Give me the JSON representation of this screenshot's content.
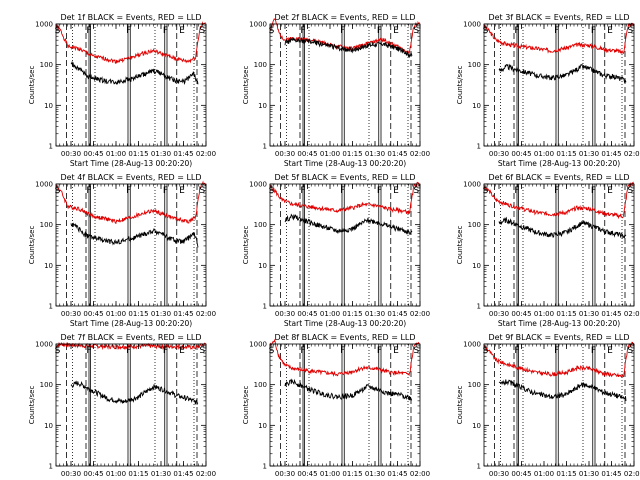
{
  "figure": {
    "panels": [
      {
        "title": "Det 1f BLACK = Events, RED = LLD",
        "y_label": "Counts/sec",
        "x_label": "Start Time (28-Aug-13 00:20:20)"
      },
      {
        "title": "Det 2f BLACK = Events, RED = LLD",
        "y_label": "Counts/sec",
        "x_label": "Start Time (28-Aug-13 00:20:20)"
      },
      {
        "title": "Det 3f BLACK = Events, RED = LLD",
        "y_label": "Counts/sec",
        "x_label": "Start Time (28-Aug-13 00:20:20)"
      },
      {
        "title": "Det 4f BLACK = Events, RED = LLD",
        "y_label": "Counts/sec",
        "x_label": "Start Time (28-Aug-13 00:20:20)"
      },
      {
        "title": "Det 5f BLACK = Events, RED = LLD",
        "y_label": "Counts/sec",
        "x_label": "Start Time (28-Aug-13 00:20:20)"
      },
      {
        "title": "Det 6f BLACK = Events, RED = LLD",
        "y_label": "Counts/sec",
        "x_label": "Start Time (28-Aug-13 00:20:20)"
      },
      {
        "title": "Det 7f BLACK = Events, RED = LLD",
        "y_label": "Counts/sec",
        "x_label": "Start Time (28-Aug-13 00:20:20)"
      },
      {
        "title": "Det 8f BLACK = Events, RED = LLD",
        "y_label": "Counts/sec",
        "x_label": "Start Time (28-Aug-13 00:20:20)"
      },
      {
        "title": "Det 9f BLACK = Events, RED = LLD",
        "y_label": "Counts/sec",
        "x_label": "Start Time (28-Aug-13 00:20:20)"
      }
    ]
  },
  "colors": {
    "events": "#000000",
    "lld": "#e00000",
    "axes": "#000000"
  },
  "chart_data": {
    "type": "line",
    "x_range_minutes": [
      0,
      100
    ],
    "y_range": [
      1,
      1000
    ],
    "y_scale": "log",
    "x_tick_labels": [
      "00:30",
      "00:45",
      "01:00",
      "01:15",
      "01:30",
      "01:45",
      "02:00"
    ],
    "x_tick_minutes": [
      10,
      25,
      40,
      55,
      70,
      85,
      100
    ],
    "y_tick_labels": [
      "1",
      "10",
      "100",
      "1000"
    ],
    "y_tick_values": [
      1,
      10,
      100,
      1000
    ],
    "series_labels": {
      "events": "BLACK = Events",
      "lld": "RED = LLD"
    },
    "markers": {
      "S": [
        1,
        97.5
      ],
      "F": [
        22,
        48.5,
        73
      ],
      "E": [
        84
      ]
    },
    "dashed_line_minutes": [
      7,
      20,
      80.5,
      94
    ],
    "dotted_line_minutes": [
      11,
      26,
      66,
      92
    ],
    "solid_line_minutes": [
      22,
      23,
      48,
      49.5,
      72.5,
      74
    ],
    "panels": [
      {
        "detector": "1f",
        "lld": {
          "minutes": [
            0,
            3,
            8,
            15,
            25,
            33,
            40,
            50,
            60,
            65,
            75,
            80,
            88,
            93,
            96,
            98,
            100
          ],
          "values": [
            900,
            700,
            280,
            250,
            160,
            140,
            120,
            150,
            200,
            220,
            160,
            140,
            120,
            150,
            800,
            1000,
            1000
          ]
        },
        "events": {
          "minutes": [
            10,
            15,
            20,
            25,
            33,
            40,
            50,
            60,
            65,
            70,
            75,
            80,
            85,
            92,
            95
          ],
          "values": [
            110,
            80,
            55,
            48,
            40,
            37,
            45,
            60,
            70,
            62,
            48,
            40,
            38,
            60,
            30
          ]
        }
      },
      {
        "detector": "2f",
        "lld": {
          "minutes": [
            0,
            3,
            6,
            10,
            15,
            25,
            35,
            45,
            55,
            65,
            75,
            85,
            93,
            96,
            98,
            100
          ],
          "values": [
            700,
            1400,
            600,
            400,
            450,
            420,
            350,
            280,
            250,
            330,
            420,
            280,
            200,
            900,
            1000,
            1000
          ]
        },
        "events": {
          "minutes": [
            10,
            15,
            25,
            35,
            45,
            55,
            65,
            75,
            85,
            93,
            95
          ],
          "values": [
            350,
            400,
            380,
            320,
            260,
            230,
            300,
            330,
            250,
            180,
            170
          ]
        }
      },
      {
        "detector": "3f",
        "lld": {
          "minutes": [
            0,
            3,
            8,
            15,
            25,
            35,
            45,
            55,
            62,
            70,
            80,
            88,
            93,
            96,
            98,
            100
          ],
          "values": [
            900,
            700,
            400,
            320,
            280,
            250,
            220,
            260,
            310,
            300,
            240,
            220,
            200,
            900,
            1000,
            1000
          ]
        },
        "events": {
          "minutes": [
            10,
            15,
            25,
            35,
            45,
            55,
            65,
            70,
            80,
            88,
            95
          ],
          "values": [
            70,
            90,
            70,
            55,
            48,
            55,
            90,
            80,
            55,
            50,
            40
          ]
        }
      },
      {
        "detector": "4f",
        "lld": {
          "minutes": [
            0,
            3,
            8,
            15,
            25,
            33,
            40,
            50,
            60,
            65,
            75,
            80,
            88,
            93,
            96,
            98,
            100
          ],
          "values": [
            900,
            700,
            280,
            250,
            160,
            140,
            120,
            150,
            200,
            220,
            160,
            140,
            120,
            150,
            800,
            1000,
            1000
          ]
        },
        "events": {
          "minutes": [
            10,
            15,
            20,
            25,
            33,
            40,
            50,
            60,
            65,
            70,
            75,
            80,
            85,
            92,
            95
          ],
          "values": [
            110,
            80,
            55,
            48,
            40,
            37,
            45,
            60,
            70,
            62,
            48,
            40,
            38,
            60,
            30
          ]
        }
      },
      {
        "detector": "5f",
        "lld": {
          "minutes": [
            0,
            3,
            8,
            15,
            25,
            35,
            45,
            55,
            62,
            70,
            80,
            88,
            93,
            96,
            98,
            100
          ],
          "values": [
            900,
            700,
            400,
            320,
            280,
            250,
            220,
            260,
            310,
            300,
            240,
            220,
            200,
            900,
            1000,
            1000
          ]
        },
        "events": {
          "minutes": [
            10,
            15,
            25,
            35,
            45,
            55,
            65,
            70,
            80,
            88,
            95
          ],
          "values": [
            130,
            160,
            120,
            90,
            70,
            80,
            130,
            120,
            90,
            75,
            60
          ]
        }
      },
      {
        "detector": "6f",
        "lld": {
          "minutes": [
            0,
            3,
            8,
            15,
            25,
            35,
            45,
            55,
            62,
            70,
            80,
            88,
            93,
            96,
            98,
            100
          ],
          "values": [
            900,
            700,
            400,
            320,
            250,
            200,
            180,
            200,
            260,
            250,
            190,
            170,
            160,
            900,
            1000,
            1000
          ]
        },
        "events": {
          "minutes": [
            10,
            15,
            25,
            35,
            45,
            55,
            65,
            70,
            80,
            88,
            95
          ],
          "values": [
            110,
            130,
            90,
            65,
            55,
            65,
            110,
            100,
            70,
            60,
            50
          ]
        }
      },
      {
        "detector": "7f",
        "lld": {
          "minutes": [
            0,
            3,
            10,
            20,
            30,
            40,
            50,
            60,
            70,
            80,
            88,
            93,
            96,
            100
          ],
          "values": [
            900,
            1000,
            950,
            900,
            880,
            850,
            870,
            900,
            880,
            860,
            840,
            820,
            900,
            1000
          ]
        },
        "events": {
          "minutes": [
            10,
            15,
            25,
            35,
            45,
            55,
            65,
            70,
            80,
            88,
            95
          ],
          "values": [
            95,
            110,
            70,
            45,
            38,
            50,
            90,
            80,
            55,
            45,
            35
          ]
        }
      },
      {
        "detector": "8f",
        "lld": {
          "minutes": [
            0,
            3,
            6,
            10,
            15,
            25,
            35,
            45,
            55,
            62,
            70,
            80,
            88,
            93,
            96,
            98,
            100
          ],
          "values": [
            900,
            1200,
            500,
            300,
            250,
            220,
            200,
            180,
            210,
            260,
            250,
            200,
            190,
            180,
            900,
            1000,
            1000
          ]
        },
        "events": {
          "minutes": [
            10,
            15,
            25,
            35,
            45,
            55,
            65,
            70,
            80,
            88,
            95
          ],
          "values": [
            100,
            120,
            80,
            60,
            50,
            55,
            90,
            80,
            60,
            55,
            45
          ]
        }
      },
      {
        "detector": "9f",
        "lld": {
          "minutes": [
            0,
            3,
            8,
            15,
            25,
            35,
            45,
            55,
            62,
            70,
            80,
            88,
            93,
            96,
            98,
            100
          ],
          "values": [
            900,
            700,
            400,
            320,
            250,
            200,
            180,
            200,
            260,
            250,
            190,
            170,
            160,
            900,
            1000,
            1000
          ]
        },
        "events": {
          "minutes": [
            10,
            15,
            25,
            35,
            45,
            55,
            65,
            70,
            80,
            88,
            95
          ],
          "values": [
            100,
            120,
            85,
            60,
            50,
            58,
            100,
            95,
            65,
            55,
            45
          ]
        }
      }
    ]
  }
}
